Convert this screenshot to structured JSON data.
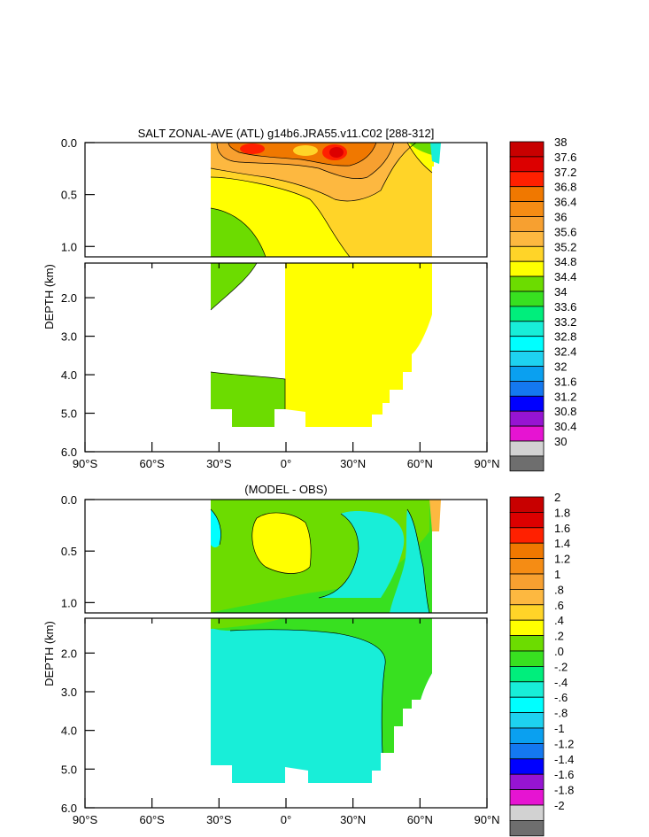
{
  "chart_data": [
    {
      "type": "heatmap",
      "title": "SALT ZONAL-AVE (ATL) g14b6.JRA55.v11.C02 [288-312]",
      "ylabel": "DEPTH (km)",
      "x_range": [
        -90,
        90
      ],
      "x_ticks": [
        -90,
        -60,
        -30,
        0,
        30,
        60,
        90
      ],
      "x_tick_labels": [
        "90°S",
        "60°S",
        "30°S",
        "0°",
        "30°N",
        "60°N",
        "90°N"
      ],
      "upper_depth_range": [
        0,
        1.1
      ],
      "upper_y_ticks": [
        0.0,
        0.5,
        1.0
      ],
      "upper_y_tick_labels": [
        "0.0",
        "0.5",
        "1.0"
      ],
      "lower_depth_range": [
        1.1,
        6.0
      ],
      "lower_y_ticks": [
        2.0,
        3.0,
        4.0,
        5.0,
        6.0
      ],
      "lower_y_tick_labels": [
        "2.0",
        "3.0",
        "4.0",
        "5.0",
        "6.0"
      ],
      "colorbar_levels": [
        "38",
        "37.6",
        "37.2",
        "36.8",
        "36.4",
        "36",
        "35.6",
        "35.2",
        "34.8",
        "34.4",
        "34",
        "33.6",
        "33.2",
        "32.8",
        "32.4",
        "32",
        "31.6",
        "31.2",
        "30.8",
        "30.4",
        "30"
      ],
      "colorbar_colors": [
        "#c80000",
        "#dc0000",
        "#ff2000",
        "#f07800",
        "#f58c14",
        "#f7a030",
        "#fdb840",
        "#ffd428",
        "#ffff00",
        "#6cdc00",
        "#38e020",
        "#00ee7c",
        "#18eed8",
        "#00ffff",
        "#1ed2f0",
        "#0aa0f0",
        "#1478f0",
        "#0000ff",
        "#9614d2",
        "#e614d2",
        "#d2d2d2",
        "#6e6e6e"
      ]
    },
    {
      "type": "heatmap",
      "title": "(MODEL - OBS)",
      "ylabel": "DEPTH (km)",
      "x_range": [
        -90,
        90
      ],
      "x_ticks": [
        -90,
        -60,
        -30,
        0,
        30,
        60,
        90
      ],
      "x_tick_labels": [
        "90°S",
        "60°S",
        "30°S",
        "0°",
        "30°N",
        "60°N",
        "90°N"
      ],
      "upper_depth_range": [
        0,
        1.1
      ],
      "upper_y_ticks": [
        0.0,
        0.5,
        1.0
      ],
      "upper_y_tick_labels": [
        "0.0",
        "0.5",
        "1.0"
      ],
      "lower_depth_range": [
        1.1,
        6.0
      ],
      "lower_y_ticks": [
        2.0,
        3.0,
        4.0,
        5.0,
        6.0
      ],
      "lower_y_tick_labels": [
        "2.0",
        "3.0",
        "4.0",
        "5.0",
        "6.0"
      ],
      "colorbar_levels": [
        "2",
        "1.8",
        "1.6",
        "1.4",
        "1.2",
        "1",
        ".8",
        ".6",
        ".4",
        ".2",
        ".0",
        "-.2",
        "-.4",
        "-.6",
        "-.8",
        "-1",
        "-1.2",
        "-1.4",
        "-1.6",
        "-1.8",
        "-2"
      ],
      "colorbar_colors": [
        "#c80000",
        "#dc0000",
        "#ff2000",
        "#f07800",
        "#f58c14",
        "#f7a030",
        "#fdb840",
        "#ffd428",
        "#ffff00",
        "#6cdc00",
        "#38e020",
        "#00ee7c",
        "#18eed8",
        "#00ffff",
        "#1ed2f0",
        "#0aa0f0",
        "#1478f0",
        "#0000ff",
        "#9614d2",
        "#e614d2",
        "#d2d2d2",
        "#6e6e6e"
      ]
    }
  ]
}
